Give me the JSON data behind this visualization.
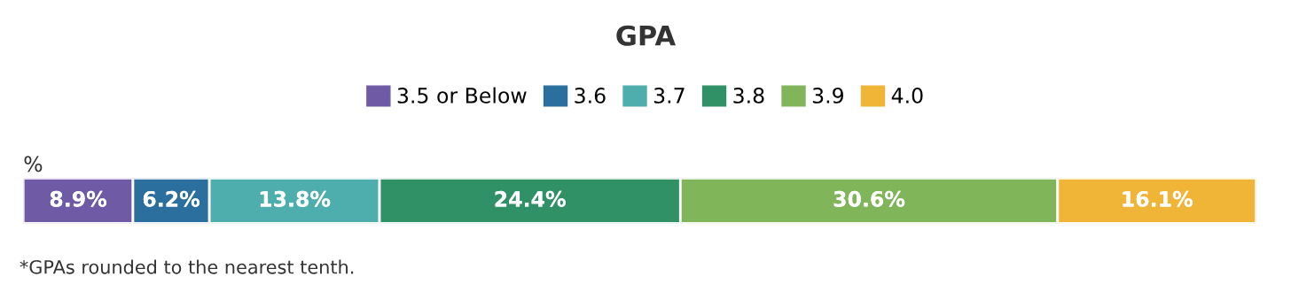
{
  "chart_data": {
    "type": "bar",
    "orientation": "horizontal",
    "stacked": true,
    "title": "GPA",
    "categories": [
      "%"
    ],
    "series": [
      {
        "name": "3.5 or Below",
        "color": "#6f5aa6",
        "values": [
          8.9
        ],
        "value_labels": [
          "8.9%"
        ]
      },
      {
        "name": "3.6",
        "color": "#2b6f9e",
        "values": [
          6.2
        ],
        "value_labels": [
          "6.2%"
        ]
      },
      {
        "name": "3.7",
        "color": "#4eaeae",
        "values": [
          13.8
        ],
        "value_labels": [
          "13.8%"
        ]
      },
      {
        "name": "3.8",
        "color": "#2f9165",
        "values": [
          24.4
        ],
        "value_labels": [
          "24.4%"
        ]
      },
      {
        "name": "3.9",
        "color": "#80b55a",
        "values": [
          30.6
        ],
        "value_labels": [
          "30.6%"
        ]
      },
      {
        "name": "4.0",
        "color": "#f0b437",
        "values": [
          16.1
        ],
        "value_labels": [
          "16.1%"
        ]
      }
    ],
    "legend": "top",
    "annotations": [
      "*GPAs rounded to the nearest tenth."
    ]
  }
}
